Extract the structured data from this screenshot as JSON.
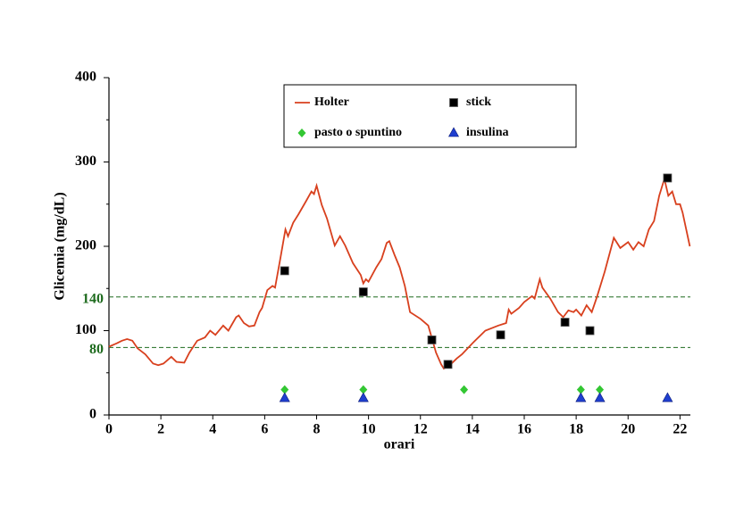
{
  "chart_data": {
    "type": "line",
    "x_label": "orari",
    "y_label": "Glicemia (mg/dL)",
    "xlim": [
      0,
      22.4
    ],
    "ylim": [
      0,
      400
    ],
    "xticks": [
      0,
      2,
      4,
      6,
      8,
      10,
      12,
      14,
      16,
      18,
      20,
      22
    ],
    "yticks": [
      0,
      100,
      200,
      300,
      400
    ],
    "y_minor_ticks": [
      50,
      150,
      250,
      350
    ],
    "reference_lines": [
      140,
      80
    ],
    "reference_color": "#1e6b1e",
    "legend": "top-center",
    "series": [
      {
        "name": "Holter",
        "color": "#d8401e",
        "marker": "line",
        "x": [
          0,
          0.3,
          0.5,
          0.7,
          0.9,
          1.1,
          1.4,
          1.7,
          1.9,
          2.1,
          2.4,
          2.6,
          2.9,
          3.1,
          3.4,
          3.7,
          3.9,
          4.1,
          4.4,
          4.6,
          4.9,
          5.0,
          5.2,
          5.4,
          5.6,
          5.8,
          5.9,
          6.1,
          6.3,
          6.4,
          6.6,
          6.8,
          6.9,
          7.1,
          7.3,
          7.6,
          7.8,
          7.9,
          8.0,
          8.2,
          8.4,
          8.7,
          8.9,
          9.1,
          9.4,
          9.7,
          9.8,
          9.9,
          10.0,
          10.3,
          10.5,
          10.7,
          10.8,
          11.0,
          11.2,
          11.4,
          11.6,
          12.0,
          12.3,
          12.6,
          12.8,
          12.9,
          13.1,
          13.4,
          13.6,
          14.0,
          14.5,
          15.0,
          15.3,
          15.4,
          15.5,
          15.8,
          16.0,
          16.3,
          16.4,
          16.6,
          16.7,
          17.0,
          17.3,
          17.5,
          17.7,
          17.9,
          18.0,
          18.2,
          18.4,
          18.6,
          18.8,
          19.1,
          19.45,
          19.7,
          20.0,
          20.2,
          20.4,
          20.6,
          20.8,
          21.0,
          21.2,
          21.4,
          21.55,
          21.7,
          21.85,
          22.0,
          22.1,
          22.38
        ],
        "values": [
          81,
          85,
          88,
          90,
          88,
          79,
          72,
          61,
          59,
          61,
          69,
          63,
          62,
          74,
          88,
          92,
          100,
          95,
          106,
          100,
          116,
          118,
          109,
          105,
          106,
          122,
          127,
          148,
          153,
          151,
          185,
          220,
          212,
          228,
          238,
          254,
          265,
          262,
          272,
          249,
          233,
          201,
          212,
          201,
          180,
          166,
          156,
          161,
          158,
          175,
          185,
          204,
          206,
          190,
          175,
          153,
          122,
          114,
          106,
          74,
          60,
          55,
          58,
          67,
          72,
          85,
          100,
          106,
          109,
          125,
          120,
          127,
          134,
          141,
          138,
          161,
          151,
          138,
          122,
          116,
          124,
          122,
          125,
          118,
          130,
          122,
          140,
          170,
          210,
          198,
          205,
          196,
          205,
          200,
          220,
          230,
          260,
          280,
          260,
          265,
          250,
          250,
          240,
          200
        ]
      },
      {
        "name": "stick",
        "color": "#000000",
        "marker": "square",
        "x": [
          6.77,
          9.8,
          12.44,
          13.06,
          15.09,
          17.57,
          18.53,
          21.52
        ],
        "values": [
          171,
          146,
          89,
          60,
          95,
          110,
          100,
          281
        ]
      },
      {
        "name": "pasto o spuntino",
        "color": "#33c733",
        "marker": "diamond",
        "x": [
          6.77,
          9.8,
          13.68,
          18.18,
          18.91
        ],
        "values": [
          30,
          30,
          30,
          30,
          30
        ]
      },
      {
        "name": "insulina",
        "color": "#1f3fcf",
        "marker": "triangle",
        "x": [
          6.77,
          9.8,
          18.18,
          18.91,
          21.52
        ],
        "values": [
          20,
          20,
          20,
          20,
          20
        ]
      }
    ]
  }
}
